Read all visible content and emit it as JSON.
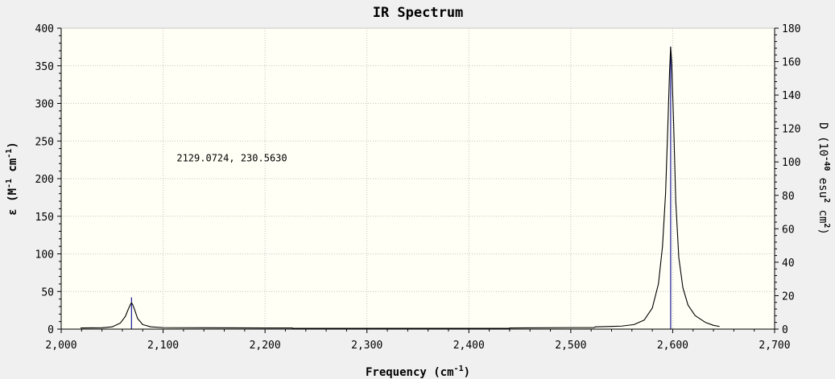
{
  "chart_data": {
    "type": "line",
    "title": "IR Spectrum",
    "xlabel": "Frequency (cm",
    "xlabel_sup": "-1",
    "xlabel_end": ")",
    "ylabel_left": {
      "t1": "ε (M",
      "s1": "-1",
      "t2": " cm",
      "s2": "-1",
      "t3": ")"
    },
    "ylabel_right": {
      "t1": "D (10",
      "s1": "-40",
      "t2": " esu",
      "s2": "2",
      "t3": " cm",
      "s3": "2",
      "t4": ")"
    },
    "xlim": [
      2000,
      2700
    ],
    "ylim_left": [
      0,
      400
    ],
    "ylim_right": [
      0,
      180
    ],
    "x_ticks": [
      {
        "value": 2000,
        "label": "2,000"
      },
      {
        "value": 2100,
        "label": "2,100"
      },
      {
        "value": 2200,
        "label": "2,200"
      },
      {
        "value": 2300,
        "label": "2,300"
      },
      {
        "value": 2400,
        "label": "2,400"
      },
      {
        "value": 2500,
        "label": "2,500"
      },
      {
        "value": 2600,
        "label": "2,600"
      },
      {
        "value": 2700,
        "label": "2,700"
      }
    ],
    "y_ticks_left": [
      0,
      50,
      100,
      150,
      200,
      250,
      300,
      350,
      400
    ],
    "y_ticks_right": [
      0,
      20,
      40,
      60,
      80,
      100,
      120,
      140,
      160,
      180
    ],
    "grid": true,
    "spectrum_range": [
      2019,
      2646
    ],
    "peaks": [
      {
        "x": 2069,
        "epsilon": 35,
        "D": 19
      },
      {
        "x": 2598,
        "epsilon": 375,
        "D": 169
      }
    ],
    "series": [
      {
        "color": "#000000",
        "points": [
          [
            2019,
            1.5
          ],
          [
            2040,
            1.8
          ],
          [
            2050,
            3
          ],
          [
            2058,
            8
          ],
          [
            2063,
            17
          ],
          [
            2066,
            27
          ],
          [
            2068,
            33
          ],
          [
            2069,
            35
          ],
          [
            2070,
            33
          ],
          [
            2072,
            26
          ],
          [
            2075,
            14
          ],
          [
            2080,
            6
          ],
          [
            2088,
            3
          ],
          [
            2100,
            2
          ],
          [
            2200,
            1.5
          ],
          [
            2227,
            1.5
          ],
          [
            2227,
            1
          ],
          [
            2440,
            1
          ],
          [
            2440,
            1.5
          ],
          [
            2500,
            2
          ],
          [
            2523,
            2
          ],
          [
            2524,
            3
          ],
          [
            2550,
            4
          ],
          [
            2562,
            6
          ],
          [
            2572,
            12
          ],
          [
            2580,
            28
          ],
          [
            2586,
            60
          ],
          [
            2590,
            110
          ],
          [
            2593,
            180
          ],
          [
            2595,
            260
          ],
          [
            2597,
            345
          ],
          [
            2598,
            375
          ],
          [
            2599,
            355
          ],
          [
            2601,
            270
          ],
          [
            2603,
            170
          ],
          [
            2606,
            95
          ],
          [
            2610,
            55
          ],
          [
            2615,
            32
          ],
          [
            2622,
            18
          ],
          [
            2632,
            9
          ],
          [
            2640,
            5
          ],
          [
            2646,
            3.5
          ]
        ]
      }
    ],
    "annotation": "2129.0724, 230.5630",
    "annotation_pos": {
      "x": 2129.0724,
      "y": 230.563
    }
  }
}
